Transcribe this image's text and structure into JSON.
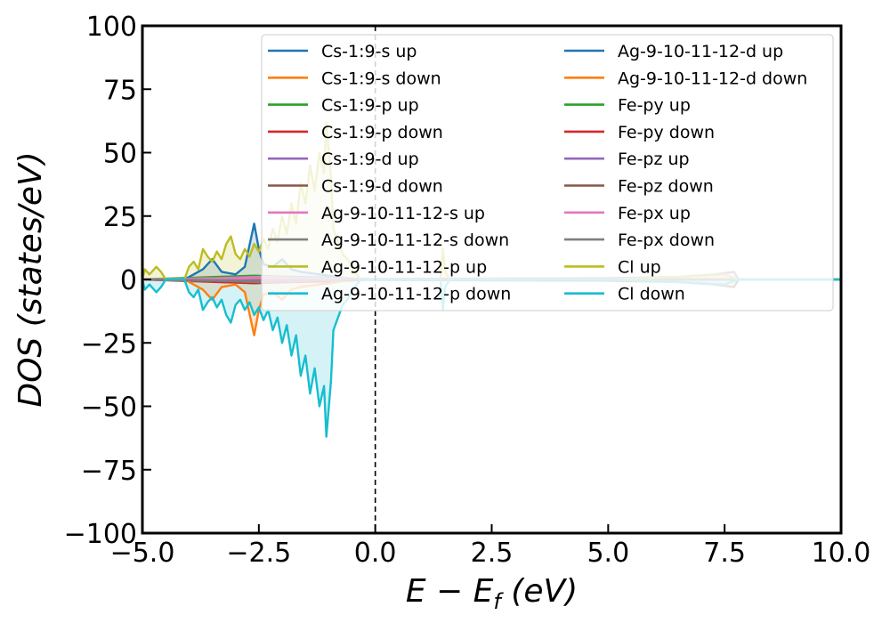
{
  "chart_data": {
    "type": "line",
    "title": "",
    "xlabel": "E − E_f (eV)",
    "xlabel_parts": {
      "main": "E − E",
      "sub": "f",
      "unit": " (eV)"
    },
    "ylabel": "DOS (states/eV)",
    "xlim": [
      -5,
      10
    ],
    "ylim": [
      -100,
      100
    ],
    "x_ticks": [
      -5.0,
      -2.5,
      0.0,
      2.5,
      5.0,
      7.5,
      10.0
    ],
    "x_tick_labels": [
      "−5.0",
      "−2.5",
      "0.0",
      "2.5",
      "5.0",
      "7.5",
      "10.0"
    ],
    "y_ticks": [
      -100,
      -75,
      -50,
      -25,
      0,
      25,
      50,
      75,
      100
    ],
    "y_tick_labels": [
      "−100",
      "−75",
      "−50",
      "−25",
      "0",
      "25",
      "50",
      "75",
      "100"
    ],
    "fermi_level": 0.0,
    "grid": false,
    "legend_placement": "top-right",
    "legend_columns": 2,
    "series": [
      {
        "name": "Cs-1:9-s up",
        "color": "#1f77b4",
        "points": [
          [
            -5,
            0
          ],
          [
            -3.6,
            0.5
          ],
          [
            -2.6,
            0.8
          ],
          [
            -2.0,
            0.5
          ],
          [
            -1.2,
            0.3
          ],
          [
            0,
            0
          ],
          [
            10,
            0
          ]
        ]
      },
      {
        "name": "Cs-1:9-s down",
        "color": "#ff7f0e",
        "points": [
          [
            -5,
            0
          ],
          [
            -3.6,
            -0.5
          ],
          [
            -2.6,
            -0.8
          ],
          [
            -2.0,
            -0.5
          ],
          [
            -1.2,
            -0.3
          ],
          [
            0,
            0
          ],
          [
            10,
            0
          ]
        ]
      },
      {
        "name": "Cs-1:9-p up",
        "color": "#2ca02c",
        "points": [
          [
            -5,
            0
          ],
          [
            -2.6,
            1.5
          ],
          [
            -1.8,
            1
          ],
          [
            -1.0,
            0.8
          ],
          [
            0,
            0
          ],
          [
            10,
            0
          ]
        ]
      },
      {
        "name": "Cs-1:9-p down",
        "color": "#d62728",
        "points": [
          [
            -5,
            0
          ],
          [
            -2.6,
            -1.5
          ],
          [
            -1.8,
            -1
          ],
          [
            -1.0,
            -0.8
          ],
          [
            0,
            0
          ],
          [
            10,
            0
          ]
        ]
      },
      {
        "name": "Cs-1:9-d up",
        "color": "#9467bd",
        "points": [
          [
            -5,
            0
          ],
          [
            5,
            0.5
          ],
          [
            6.5,
            1
          ],
          [
            7.3,
            2
          ],
          [
            7.7,
            3
          ],
          [
            7.8,
            0
          ],
          [
            10,
            0
          ]
        ]
      },
      {
        "name": "Cs-1:9-d down",
        "color": "#8c564b",
        "points": [
          [
            -5,
            0
          ],
          [
            5,
            -0.5
          ],
          [
            6.5,
            -1
          ],
          [
            7.3,
            -2
          ],
          [
            7.7,
            -3
          ],
          [
            7.8,
            0
          ],
          [
            10,
            0
          ]
        ]
      },
      {
        "name": "Ag-9-10-11-12-s up",
        "color": "#e377c2",
        "points": [
          [
            -5,
            0
          ],
          [
            -3.5,
            0.5
          ],
          [
            -2.5,
            1
          ],
          [
            0,
            0
          ],
          [
            10,
            0
          ]
        ]
      },
      {
        "name": "Ag-9-10-11-12-s down",
        "color": "#7f7f7f",
        "points": [
          [
            -5,
            0
          ],
          [
            -3.5,
            -0.5
          ],
          [
            -2.5,
            -1
          ],
          [
            0,
            0
          ],
          [
            10,
            0
          ]
        ]
      },
      {
        "name": "Ag-9-10-11-12-p up",
        "color": "#bcbd22",
        "points": [
          [
            -5,
            0
          ],
          [
            -4.2,
            0.3
          ],
          [
            -2.5,
            0.5
          ],
          [
            0,
            0
          ],
          [
            10,
            0
          ]
        ]
      },
      {
        "name": "Ag-9-10-11-12-p down",
        "color": "#17becf",
        "points": [
          [
            -5,
            0
          ],
          [
            -4.2,
            -0.3
          ],
          [
            -2.5,
            -0.5
          ],
          [
            0,
            0
          ],
          [
            10,
            0
          ]
        ]
      },
      {
        "name": "Ag-9-10-11-12-d up",
        "color": "#1f77b4",
        "points": [
          [
            -5,
            0
          ],
          [
            -4.1,
            0
          ],
          [
            -3.9,
            2
          ],
          [
            -3.7,
            4
          ],
          [
            -3.5,
            8
          ],
          [
            -3.3,
            3
          ],
          [
            -3.0,
            2
          ],
          [
            -2.8,
            5
          ],
          [
            -2.6,
            22
          ],
          [
            -2.5,
            12
          ],
          [
            -2.4,
            6
          ],
          [
            -2.2,
            5
          ],
          [
            -2.0,
            8
          ],
          [
            -1.8,
            4
          ],
          [
            -1.6,
            3
          ],
          [
            -1.2,
            2
          ],
          [
            -0.8,
            1
          ],
          [
            -0.5,
            0
          ],
          [
            10,
            0
          ]
        ]
      },
      {
        "name": "Ag-9-10-11-12-d down",
        "color": "#ff7f0e",
        "points": [
          [
            -5,
            0
          ],
          [
            -4.1,
            0
          ],
          [
            -3.9,
            -2
          ],
          [
            -3.7,
            -4
          ],
          [
            -3.5,
            -8
          ],
          [
            -3.3,
            -3
          ],
          [
            -3.0,
            -2
          ],
          [
            -2.8,
            -5
          ],
          [
            -2.6,
            -22
          ],
          [
            -2.5,
            -12
          ],
          [
            -2.4,
            -6
          ],
          [
            -2.2,
            -5
          ],
          [
            -2.0,
            -8
          ],
          [
            -1.8,
            -4
          ],
          [
            -1.6,
            -3
          ],
          [
            -1.2,
            -2
          ],
          [
            -0.8,
            -1
          ],
          [
            -0.5,
            0
          ],
          [
            10,
            0
          ]
        ]
      },
      {
        "name": "Fe-py up",
        "color": "#2ca02c",
        "points": [
          [
            -5,
            0
          ],
          [
            -2.5,
            0.5
          ],
          [
            -1.5,
            0.5
          ],
          [
            0,
            0
          ],
          [
            10,
            0
          ]
        ]
      },
      {
        "name": "Fe-py down",
        "color": "#d62728",
        "points": [
          [
            -5,
            0
          ],
          [
            -2.5,
            -0.5
          ],
          [
            -1.5,
            -0.5
          ],
          [
            0,
            0
          ],
          [
            10,
            0
          ]
        ]
      },
      {
        "name": "Fe-pz up",
        "color": "#9467bd",
        "points": [
          [
            -5,
            0
          ],
          [
            -2.5,
            0.5
          ],
          [
            -1.5,
            0.5
          ],
          [
            0,
            0
          ],
          [
            10,
            0
          ]
        ]
      },
      {
        "name": "Fe-pz down",
        "color": "#8c564b",
        "points": [
          [
            -5,
            0
          ],
          [
            -2.5,
            -0.5
          ],
          [
            -1.5,
            -0.5
          ],
          [
            0,
            0
          ],
          [
            10,
            0
          ]
        ]
      },
      {
        "name": "Fe-px up",
        "color": "#e377c2",
        "points": [
          [
            -5,
            0
          ],
          [
            -2.5,
            0.5
          ],
          [
            -1.5,
            0.5
          ],
          [
            0,
            0
          ],
          [
            10,
            0
          ]
        ]
      },
      {
        "name": "Fe-px down",
        "color": "#7f7f7f",
        "points": [
          [
            -5,
            0
          ],
          [
            -2.5,
            -0.5
          ],
          [
            -1.5,
            -0.5
          ],
          [
            0,
            0
          ],
          [
            10,
            0
          ]
        ]
      },
      {
        "name": "Cl up",
        "color": "#bcbd22",
        "points": [
          [
            -5,
            0
          ],
          [
            -4.95,
            4
          ],
          [
            -4.85,
            2
          ],
          [
            -4.7,
            5
          ],
          [
            -4.6,
            3
          ],
          [
            -4.5,
            0
          ],
          [
            -4.1,
            0
          ],
          [
            -4.0,
            5
          ],
          [
            -3.9,
            7
          ],
          [
            -3.8,
            4
          ],
          [
            -3.7,
            12
          ],
          [
            -3.6,
            9
          ],
          [
            -3.5,
            7
          ],
          [
            -3.4,
            11
          ],
          [
            -3.3,
            8
          ],
          [
            -3.2,
            14
          ],
          [
            -3.1,
            17
          ],
          [
            -3.0,
            10
          ],
          [
            -2.9,
            8
          ],
          [
            -2.8,
            12
          ],
          [
            -2.7,
            9
          ],
          [
            -2.6,
            14
          ],
          [
            -2.5,
            11
          ],
          [
            -2.4,
            16
          ],
          [
            -2.3,
            12
          ],
          [
            -2.2,
            20
          ],
          [
            -2.1,
            15
          ],
          [
            -2.0,
            25
          ],
          [
            -1.9,
            18
          ],
          [
            -1.8,
            30
          ],
          [
            -1.7,
            22
          ],
          [
            -1.6,
            38
          ],
          [
            -1.5,
            30
          ],
          [
            -1.4,
            45
          ],
          [
            -1.3,
            35
          ],
          [
            -1.2,
            50
          ],
          [
            -1.1,
            42
          ],
          [
            -1.05,
            62
          ],
          [
            -0.95,
            40
          ],
          [
            -0.9,
            20
          ],
          [
            -0.8,
            15
          ],
          [
            -0.7,
            10
          ],
          [
            -0.6,
            8
          ],
          [
            -0.5,
            5
          ],
          [
            -0.4,
            2
          ],
          [
            -0.3,
            0
          ],
          [
            1.4,
            0
          ],
          [
            1.45,
            12
          ],
          [
            1.5,
            3
          ],
          [
            1.6,
            0
          ],
          [
            5,
            0
          ],
          [
            6.5,
            1
          ],
          [
            7.5,
            2
          ],
          [
            7.8,
            0
          ],
          [
            10,
            0
          ]
        ]
      },
      {
        "name": "Cl down",
        "color": "#17becf",
        "points": [
          [
            -5,
            0
          ],
          [
            -4.95,
            -4
          ],
          [
            -4.85,
            -2
          ],
          [
            -4.7,
            -5
          ],
          [
            -4.6,
            -3
          ],
          [
            -4.5,
            0
          ],
          [
            -4.1,
            0
          ],
          [
            -4.0,
            -5
          ],
          [
            -3.9,
            -7
          ],
          [
            -3.8,
            -4
          ],
          [
            -3.7,
            -12
          ],
          [
            -3.6,
            -9
          ],
          [
            -3.5,
            -7
          ],
          [
            -3.4,
            -11
          ],
          [
            -3.3,
            -8
          ],
          [
            -3.2,
            -14
          ],
          [
            -3.1,
            -17
          ],
          [
            -3.0,
            -10
          ],
          [
            -2.9,
            -8
          ],
          [
            -2.8,
            -12
          ],
          [
            -2.7,
            -9
          ],
          [
            -2.6,
            -14
          ],
          [
            -2.5,
            -11
          ],
          [
            -2.4,
            -16
          ],
          [
            -2.3,
            -12
          ],
          [
            -2.2,
            -20
          ],
          [
            -2.1,
            -15
          ],
          [
            -2.0,
            -25
          ],
          [
            -1.9,
            -18
          ],
          [
            -1.8,
            -30
          ],
          [
            -1.7,
            -22
          ],
          [
            -1.6,
            -38
          ],
          [
            -1.5,
            -30
          ],
          [
            -1.4,
            -45
          ],
          [
            -1.3,
            -35
          ],
          [
            -1.2,
            -50
          ],
          [
            -1.1,
            -42
          ],
          [
            -1.05,
            -62
          ],
          [
            -0.95,
            -40
          ],
          [
            -0.9,
            -20
          ],
          [
            -0.8,
            -15
          ],
          [
            -0.7,
            -10
          ],
          [
            -0.6,
            -8
          ],
          [
            -0.5,
            -5
          ],
          [
            -0.4,
            -2
          ],
          [
            -0.3,
            0
          ],
          [
            1.4,
            0
          ],
          [
            1.45,
            -12
          ],
          [
            1.5,
            -3
          ],
          [
            1.6,
            0
          ],
          [
            5,
            0
          ],
          [
            6.5,
            -1
          ],
          [
            7.5,
            -2
          ],
          [
            7.8,
            0
          ],
          [
            10,
            0
          ]
        ]
      }
    ]
  }
}
